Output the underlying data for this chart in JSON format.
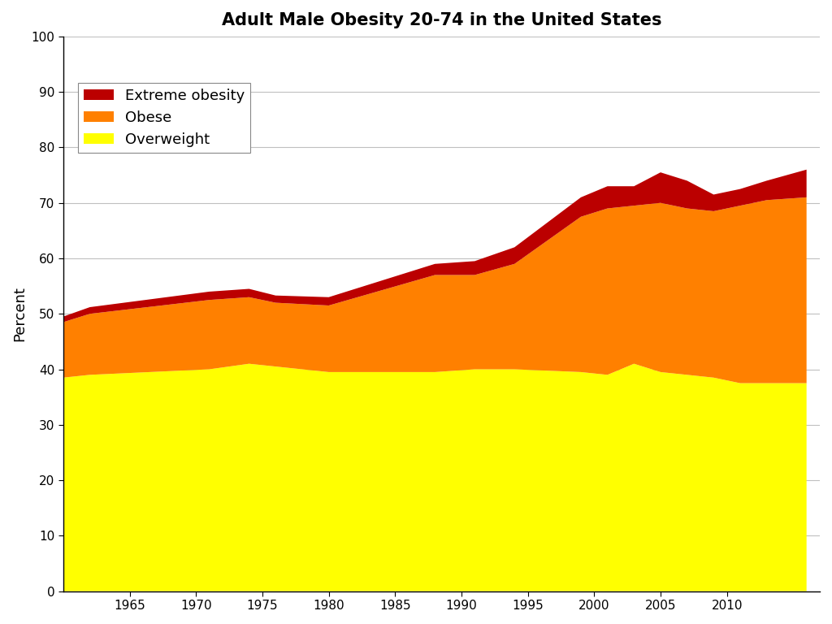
{
  "title": "Adult Male Obesity 20-74 in the United States",
  "ylabel": "Percent",
  "ylim": [
    0,
    100
  ],
  "yticks": [
    0,
    10,
    20,
    30,
    40,
    50,
    60,
    70,
    80,
    90,
    100
  ],
  "years": [
    1960,
    1962,
    1971,
    1974,
    1976,
    1980,
    1988,
    1991,
    1994,
    1999,
    2001,
    2003,
    2005,
    2007,
    2009,
    2011,
    2013,
    2016
  ],
  "overweight": [
    38.5,
    39.0,
    40.0,
    41.0,
    40.5,
    39.5,
    39.5,
    40.0,
    40.0,
    39.5,
    39.0,
    41.0,
    39.5,
    39.0,
    38.5,
    37.5,
    37.5,
    37.5
  ],
  "obese": [
    10.0,
    11.0,
    12.5,
    12.0,
    11.5,
    12.0,
    17.5,
    17.0,
    19.0,
    28.0,
    30.0,
    28.5,
    30.5,
    30.0,
    30.0,
    32.0,
    33.0,
    33.5
  ],
  "extreme": [
    1.0,
    1.2,
    1.5,
    1.5,
    1.3,
    1.5,
    2.0,
    2.5,
    3.0,
    3.5,
    4.0,
    3.5,
    5.5,
    5.0,
    3.0,
    3.0,
    3.5,
    5.0
  ],
  "color_overweight": "#ffff00",
  "color_obese": "#ff8000",
  "color_extreme": "#bb0000",
  "xlim_left": 1960,
  "xlim_right": 2017,
  "xticks": [
    1965,
    1970,
    1975,
    1980,
    1985,
    1990,
    1995,
    2000,
    2005,
    2010
  ],
  "title_fontsize": 15,
  "label_fontsize": 13,
  "tick_fontsize": 11,
  "legend_fontsize": 13,
  "background_color": "#ffffff"
}
